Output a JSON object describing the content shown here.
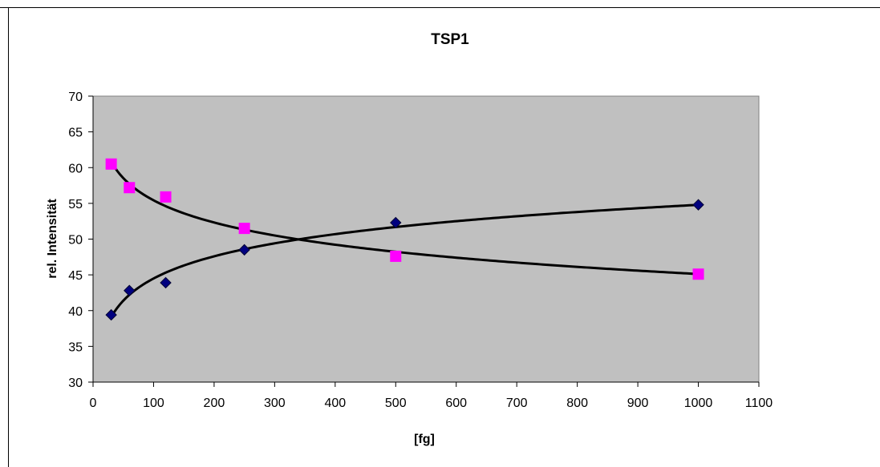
{
  "chart_data": {
    "type": "scatter",
    "title": "TSP1",
    "xlabel": "[fg]",
    "ylabel": "rel. Intensität",
    "xlim": [
      0,
      1100
    ],
    "ylim": [
      30,
      70
    ],
    "xticks": [
      0,
      100,
      200,
      300,
      400,
      500,
      600,
      700,
      800,
      900,
      1000,
      1100
    ],
    "yticks": [
      30,
      35,
      40,
      45,
      50,
      55,
      60,
      65,
      70
    ],
    "grid": false,
    "plot_background": "#c0c0c0",
    "series": [
      {
        "marker": "diamond",
        "color": "#000080",
        "x": [
          30,
          60,
          120,
          250,
          500,
          1000
        ],
        "y": [
          39.4,
          42.8,
          43.9,
          48.5,
          52.3,
          54.8
        ],
        "trendline": {
          "type": "log",
          "color": "#000000",
          "x_from": 30,
          "x_to": 1000
        }
      },
      {
        "marker": "square",
        "color": "#ff00ff",
        "x": [
          30,
          60,
          120,
          250,
          500,
          1000
        ],
        "y": [
          60.5,
          57.2,
          55.9,
          51.5,
          47.6,
          45.1
        ],
        "trendline": {
          "type": "log",
          "color": "#000000",
          "x_from": 30,
          "x_to": 1000
        }
      }
    ]
  }
}
